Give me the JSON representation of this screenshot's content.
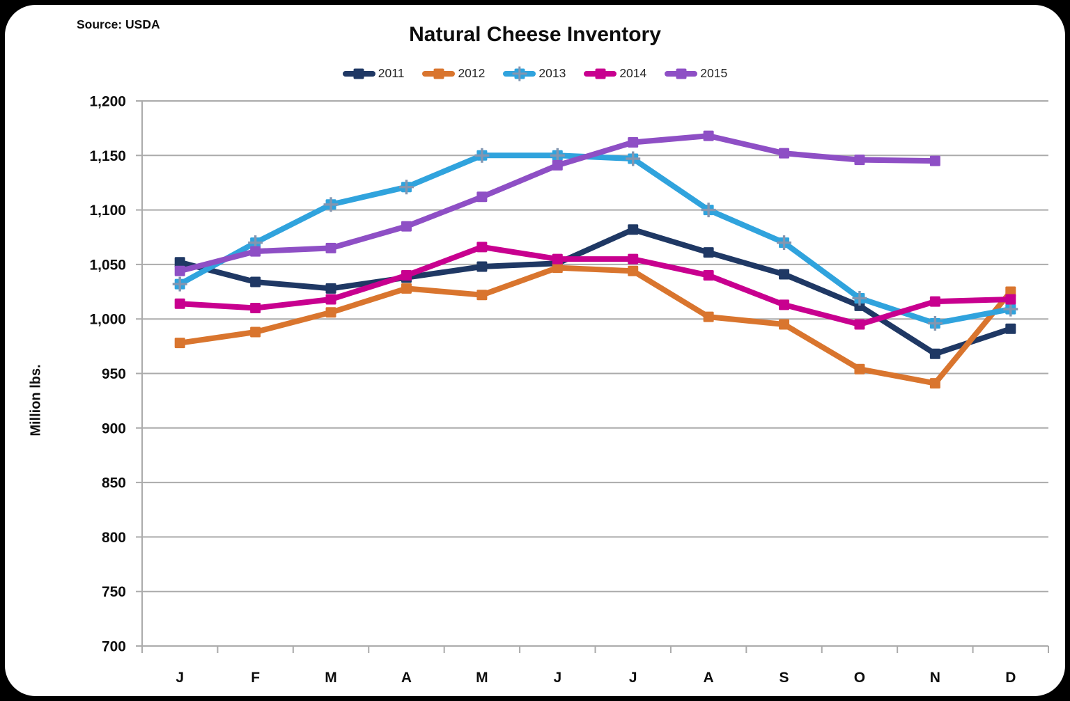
{
  "header": {
    "source_label": "Source: USDA"
  },
  "chart_data": {
    "type": "line",
    "title": "Natural Cheese Inventory",
    "ylabel": "Million lbs.",
    "ylim": [
      700,
      1200
    ],
    "ytick_step": 50,
    "ytick_labels": [
      "700",
      "750",
      "800",
      "850",
      "900",
      "950",
      "1,000",
      "1,050",
      "1,100",
      "1,150",
      "1,200"
    ],
    "categories": [
      "J",
      "F",
      "M",
      "A",
      "M",
      "J",
      "J",
      "A",
      "S",
      "O",
      "N",
      "D"
    ],
    "grid": true,
    "legend_position": "top",
    "axis_color": "#ABABAB",
    "plus_marker_color": "#8496B0",
    "series": [
      {
        "name": "2011",
        "color": "#1F3864",
        "marker": "square",
        "values": [
          1052,
          1034,
          1028,
          1038,
          1048,
          1051,
          1082,
          1061,
          1041,
          1012,
          968,
          991
        ]
      },
      {
        "name": "2012",
        "color": "#D9752E",
        "marker": "square",
        "values": [
          978,
          988,
          1006,
          1028,
          1022,
          1047,
          1044,
          1002,
          995,
          954,
          941,
          1025
        ]
      },
      {
        "name": "2013",
        "color": "#30A3DD",
        "marker": "plus-square",
        "values": [
          1032,
          1070,
          1105,
          1121,
          1150,
          1150,
          1147,
          1100,
          1070,
          1019,
          996,
          1009
        ]
      },
      {
        "name": "2014",
        "color": "#C8008F",
        "marker": "square",
        "values": [
          1014,
          1010,
          1018,
          1040,
          1066,
          1055,
          1055,
          1040,
          1013,
          995,
          1016,
          1018
        ]
      },
      {
        "name": "2015",
        "color": "#8E4FC5",
        "marker": "square",
        "values": [
          1044,
          1062,
          1065,
          1085,
          1112,
          1141,
          1162,
          1168,
          1152,
          1146,
          1145,
          null
        ]
      }
    ]
  }
}
